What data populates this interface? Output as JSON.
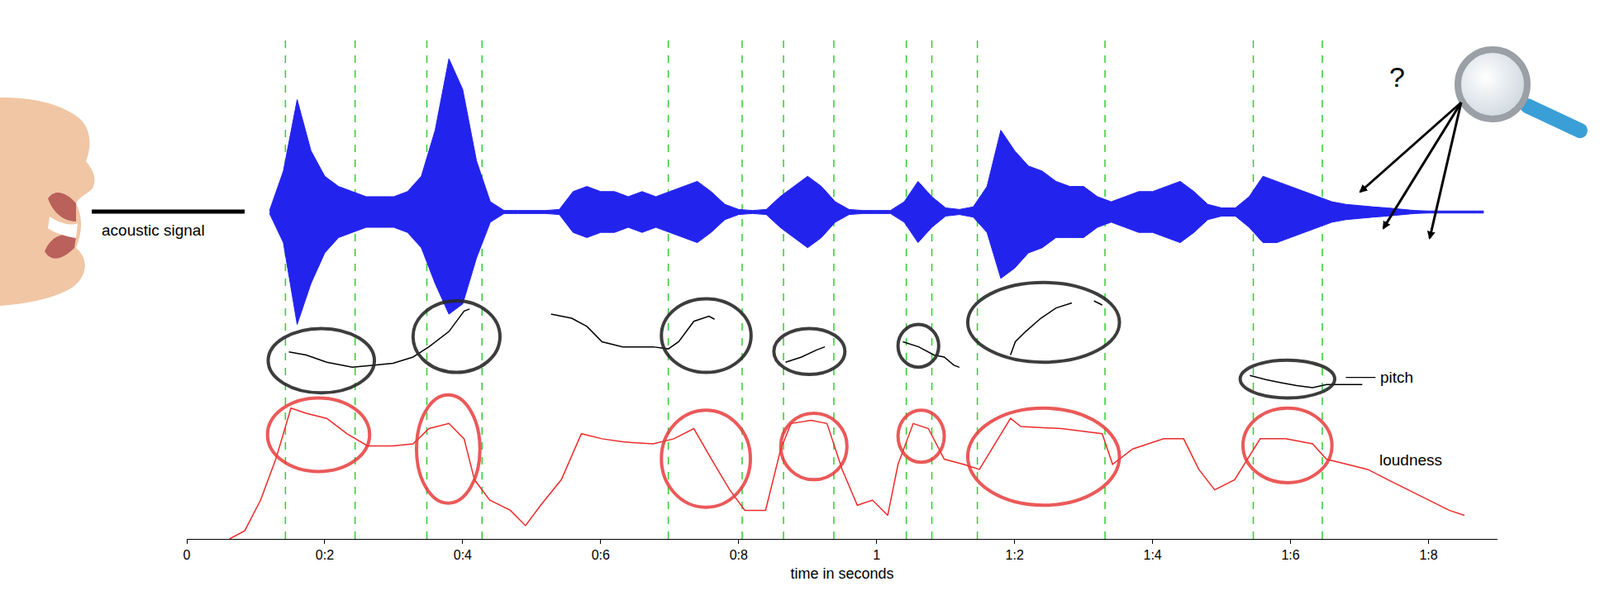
{
  "chart_data": {
    "type": "line",
    "xlabel": "time in seconds",
    "xlim": [
      0,
      1.9
    ],
    "xticks": [
      0,
      {
        "value": 0.2,
        "label": "0:2"
      },
      {
        "value": 0.4,
        "label": "0:4"
      },
      {
        "value": 0.6,
        "label": "0:6"
      },
      {
        "value": 0.8,
        "label": "0:8"
      },
      1,
      {
        "value": 1.2,
        "label": "1:2"
      },
      {
        "value": 1.4,
        "label": "1:4"
      },
      {
        "value": 1.6,
        "label": "1:6"
      },
      {
        "value": 1.8,
        "label": "1:8"
      }
    ],
    "ylim": [
      0,
      100
    ],
    "tick_labels": "x",
    "grid": false,
    "series": [
      {
        "name": "acoustic signal",
        "color": "#2323ee",
        "points": [
          [
            0.12,
            64.3,
            63.7
          ],
          [
            0.14,
            72,
            58
          ],
          [
            0.16,
            86,
            42
          ],
          [
            0.18,
            76,
            50
          ],
          [
            0.2,
            71,
            56
          ],
          [
            0.22,
            69,
            59
          ],
          [
            0.24,
            68,
            60
          ],
          [
            0.26,
            67,
            61
          ],
          [
            0.28,
            67,
            61
          ],
          [
            0.3,
            67,
            61
          ],
          [
            0.32,
            68,
            60
          ],
          [
            0.34,
            71,
            57
          ],
          [
            0.36,
            80,
            50
          ],
          [
            0.38,
            94,
            44
          ],
          [
            0.4,
            88,
            46
          ],
          [
            0.42,
            74,
            55
          ],
          [
            0.44,
            66,
            62
          ],
          [
            0.46,
            64.3,
            63.7
          ],
          [
            0.48,
            64.3,
            63.7
          ],
          [
            0.5,
            64.3,
            63.7
          ],
          [
            0.52,
            64.3,
            63.7
          ],
          [
            0.54,
            64.5,
            63.5
          ],
          [
            0.56,
            68,
            60
          ],
          [
            0.58,
            69,
            59
          ],
          [
            0.6,
            68,
            60
          ],
          [
            0.62,
            68,
            60
          ],
          [
            0.64,
            67,
            61
          ],
          [
            0.66,
            68,
            60
          ],
          [
            0.68,
            67,
            61
          ],
          [
            0.7,
            68,
            60
          ],
          [
            0.72,
            69,
            59
          ],
          [
            0.74,
            70,
            58
          ],
          [
            0.76,
            68,
            60
          ],
          [
            0.78,
            65.5,
            62.5
          ],
          [
            0.8,
            64.5,
            63.5
          ],
          [
            0.82,
            64.3,
            63.7
          ],
          [
            0.84,
            64.5,
            63.5
          ],
          [
            0.86,
            67,
            61
          ],
          [
            0.88,
            69,
            59
          ],
          [
            0.9,
            71,
            57
          ],
          [
            0.92,
            69,
            59
          ],
          [
            0.94,
            66,
            62
          ],
          [
            0.96,
            64.5,
            63.5
          ],
          [
            0.98,
            64.3,
            63.7
          ],
          [
            1.0,
            64.3,
            63.7
          ],
          [
            1.02,
            64.3,
            63.7
          ],
          [
            1.04,
            66,
            62
          ],
          [
            1.06,
            70,
            58
          ],
          [
            1.08,
            67,
            61
          ],
          [
            1.1,
            64.8,
            63.2
          ],
          [
            1.12,
            64.5,
            63.5
          ],
          [
            1.14,
            65,
            63
          ],
          [
            1.16,
            69,
            60
          ],
          [
            1.18,
            80,
            51
          ],
          [
            1.2,
            76,
            53
          ],
          [
            1.22,
            73,
            56
          ],
          [
            1.24,
            72,
            57
          ],
          [
            1.26,
            70,
            59
          ],
          [
            1.28,
            69,
            59
          ],
          [
            1.3,
            69,
            59
          ],
          [
            1.32,
            67,
            61
          ],
          [
            1.34,
            66,
            62
          ],
          [
            1.36,
            67,
            61
          ],
          [
            1.38,
            68,
            60
          ],
          [
            1.4,
            68,
            60
          ],
          [
            1.42,
            69,
            59
          ],
          [
            1.44,
            70,
            58
          ],
          [
            1.46,
            68,
            60
          ],
          [
            1.48,
            65.5,
            62.5
          ],
          [
            1.5,
            64.8,
            63.2
          ],
          [
            1.52,
            64.8,
            63.2
          ],
          [
            1.54,
            67,
            61
          ],
          [
            1.56,
            71,
            58
          ],
          [
            1.58,
            70,
            58
          ],
          [
            1.6,
            69,
            59
          ],
          [
            1.62,
            68,
            60
          ],
          [
            1.64,
            67,
            61
          ],
          [
            1.66,
            66,
            62
          ],
          [
            1.68,
            65.5,
            62.5
          ],
          [
            1.7,
            65.2,
            62.8
          ],
          [
            1.72,
            65,
            63
          ],
          [
            1.74,
            64.8,
            63.2
          ],
          [
            1.76,
            64.5,
            63.5
          ],
          [
            1.78,
            64.3,
            63.7
          ],
          [
            1.8,
            64.2,
            63.8
          ],
          [
            1.82,
            64.2,
            63.8
          ],
          [
            1.84,
            64.2,
            63.8
          ],
          [
            1.86,
            64.2,
            63.8
          ],
          [
            1.88,
            64.2,
            63.8
          ]
        ]
      },
      {
        "name": "pitch",
        "color": "#000000",
        "label": {
          "x": 1.728,
          "y": 31.6
        },
        "segments": [
          [
            [
              0.148,
              36.6
            ],
            [
              0.173,
              36.0
            ],
            [
              0.203,
              34.6
            ],
            [
              0.24,
              33.6
            ],
            [
              0.269,
              34.0
            ],
            [
              0.299,
              34.4
            ],
            [
              0.328,
              35.6
            ],
            [
              0.351,
              37.6
            ],
            [
              0.38,
              40.6
            ],
            [
              0.402,
              44.6
            ],
            [
              0.41,
              45.0
            ]
          ],
          [
            [
              0.528,
              44.0
            ],
            [
              0.558,
              43.2
            ],
            [
              0.58,
              41.6
            ],
            [
              0.602,
              38.6
            ],
            [
              0.632,
              37.6
            ],
            [
              0.676,
              37.6
            ],
            [
              0.698,
              37.2
            ],
            [
              0.713,
              38.6
            ],
            [
              0.735,
              42.6
            ],
            [
              0.757,
              43.6
            ],
            [
              0.765,
              43.0
            ]
          ],
          [
            [
              0.868,
              34.6
            ],
            [
              0.891,
              35.6
            ],
            [
              0.913,
              37.0
            ],
            [
              0.925,
              37.6
            ]
          ],
          [
            [
              1.038,
              38.6
            ],
            [
              1.061,
              37.6
            ],
            [
              1.083,
              36.0
            ],
            [
              1.098,
              35.6
            ],
            [
              1.112,
              34.0
            ],
            [
              1.12,
              33.6
            ]
          ],
          [
            [
              1.194,
              36.0
            ],
            [
              1.201,
              38.6
            ],
            [
              1.216,
              40.6
            ],
            [
              1.238,
              43.2
            ],
            [
              1.26,
              45.2
            ],
            [
              1.283,
              46.2
            ]
          ],
          [
            [
              1.315,
              46.6
            ],
            [
              1.327,
              45.8
            ]
          ],
          [
            [
              1.541,
              32.0
            ],
            [
              1.564,
              31.2
            ],
            [
              1.586,
              30.6
            ],
            [
              1.609,
              30.0
            ],
            [
              1.632,
              29.6
            ],
            [
              1.652,
              30.2
            ],
            [
              1.704,
              30.2
            ]
          ]
        ]
      },
      {
        "name": "loudness",
        "color": "#ee2a2a",
        "label": {
          "x": 1.726,
          "y": 15.5
        },
        "points": [
          [
            0.062,
            0
          ],
          [
            0.084,
            1.6
          ],
          [
            0.107,
            7.6
          ],
          [
            0.129,
            15.6
          ],
          [
            0.151,
            25.6
          ],
          [
            0.173,
            24.6
          ],
          [
            0.203,
            23.6
          ],
          [
            0.232,
            20.6
          ],
          [
            0.262,
            18.2
          ],
          [
            0.299,
            18.2
          ],
          [
            0.328,
            18.6
          ],
          [
            0.351,
            21.6
          ],
          [
            0.38,
            22.6
          ],
          [
            0.402,
            19.6
          ],
          [
            0.417,
            11.6
          ],
          [
            0.439,
            7.6
          ],
          [
            0.469,
            5.6
          ],
          [
            0.491,
            2.6
          ],
          [
            0.513,
            6.6
          ],
          [
            0.543,
            11.6
          ],
          [
            0.572,
            20.6
          ],
          [
            0.602,
            19.6
          ],
          [
            0.632,
            19.0
          ],
          [
            0.676,
            18.6
          ],
          [
            0.706,
            19.6
          ],
          [
            0.735,
            21.6
          ],
          [
            0.765,
            14.6
          ],
          [
            0.787,
            9.6
          ],
          [
            0.809,
            5.6
          ],
          [
            0.839,
            5.6
          ],
          [
            0.861,
            17.6
          ],
          [
            0.876,
            22.6
          ],
          [
            0.905,
            23.2
          ],
          [
            0.928,
            22.6
          ],
          [
            0.95,
            13.6
          ],
          [
            0.972,
            6.6
          ],
          [
            0.994,
            7.6
          ],
          [
            1.016,
            4.6
          ],
          [
            1.031,
            14.6
          ],
          [
            1.053,
            22.6
          ],
          [
            1.075,
            21.6
          ],
          [
            1.098,
            15.6
          ],
          [
            1.126,
            14.6
          ],
          [
            1.149,
            13.6
          ],
          [
            1.194,
            23.6
          ],
          [
            1.209,
            22.0
          ],
          [
            1.268,
            21.6
          ],
          [
            1.327,
            20.6
          ],
          [
            1.342,
            14.6
          ],
          [
            1.371,
            17.6
          ],
          [
            1.416,
            19.6
          ],
          [
            1.445,
            19.6
          ],
          [
            1.467,
            13.6
          ],
          [
            1.49,
            9.6
          ],
          [
            1.519,
            11.6
          ],
          [
            1.556,
            19.6
          ],
          [
            1.593,
            19.6
          ],
          [
            1.632,
            18.6
          ],
          [
            1.652,
            15.6
          ],
          [
            1.682,
            14.6
          ],
          [
            1.712,
            13.6
          ],
          [
            1.741,
            11.6
          ],
          [
            1.771,
            9.6
          ],
          [
            1.8,
            7.6
          ],
          [
            1.83,
            5.6
          ],
          [
            1.852,
            4.6
          ]
        ]
      }
    ],
    "segment_boundaries": [
      0.143,
      0.244,
      0.348,
      0.428,
      0.698,
      0.805,
      0.865,
      0.938,
      1.043,
      1.08,
      1.146,
      1.331,
      1.546,
      1.646
    ],
    "pitch_highlights": [
      [
        0.118,
        0.272,
        28.6,
        41.2
      ],
      [
        0.328,
        0.454,
        32.6,
        46.6
      ],
      [
        0.688,
        0.818,
        32.6,
        47.0
      ],
      [
        0.851,
        0.954,
        32.2,
        41.2
      ],
      [
        1.031,
        1.09,
        33.6,
        42.0
      ],
      [
        1.132,
        1.352,
        34.6,
        50.2
      ],
      [
        1.527,
        1.664,
        27.6,
        35.0
      ]
    ],
    "loudness_highlights": [
      [
        0.117,
        0.265,
        13.2,
        27.6
      ],
      [
        0.333,
        0.425,
        7.0,
        28.2
      ],
      [
        0.688,
        0.817,
        6.2,
        25.2
      ],
      [
        0.861,
        0.957,
        11.6,
        24.6
      ],
      [
        1.031,
        1.098,
        15.0,
        25.2
      ],
      [
        1.132,
        1.352,
        6.6,
        25.6
      ],
      [
        1.531,
        1.66,
        11.0,
        25.6
      ]
    ],
    "annotations": [
      {
        "text": "?",
        "x": 1.754,
        "y": 90.5
      }
    ]
  }
}
